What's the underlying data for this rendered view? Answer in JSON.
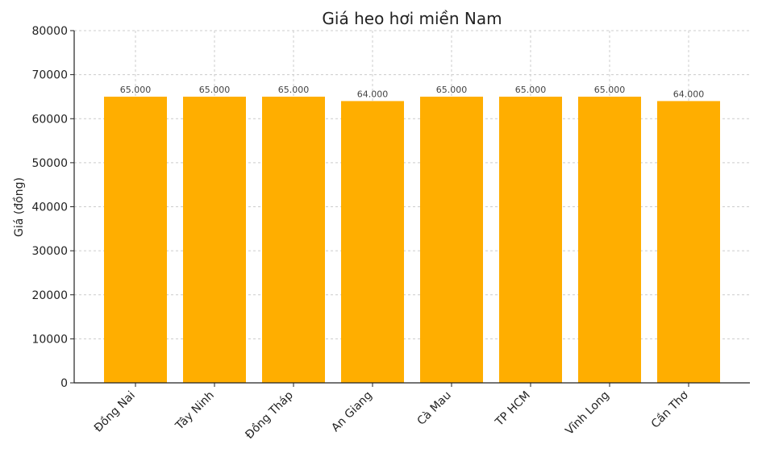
{
  "chart_data": {
    "type": "bar",
    "title": "Giá heo hơi miền Nam",
    "xlabel": "",
    "ylabel": "Giá (đồng)",
    "categories": [
      "Đồng Nai",
      "Tây Ninh",
      "Đồng Tháp",
      "An Giang",
      "Cà Mau",
      "TP HCM",
      "Vĩnh Long",
      "Cần Thơ"
    ],
    "values": [
      65000,
      65000,
      65000,
      64000,
      65000,
      65000,
      65000,
      64000
    ],
    "data_labels": [
      "65.000",
      "65.000",
      "65.000",
      "64.000",
      "65.000",
      "65.000",
      "65.000",
      "64.000"
    ],
    "ylim": [
      0,
      80000
    ],
    "yticks": [
      0,
      10000,
      20000,
      30000,
      40000,
      50000,
      60000,
      70000,
      80000
    ],
    "bar_color": "#FFAE00",
    "grid": true,
    "legend": "none"
  }
}
